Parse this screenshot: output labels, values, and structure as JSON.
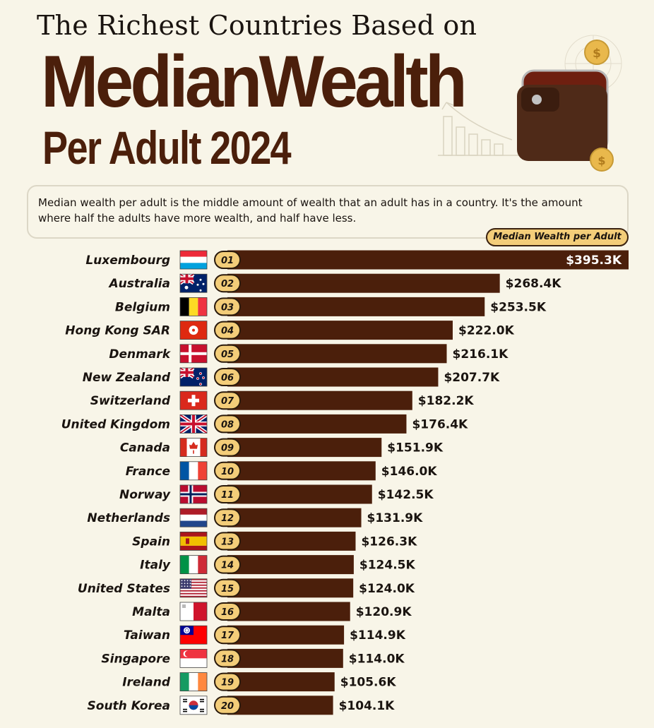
{
  "header": {
    "title_line1": "The Richest Countries Based on",
    "title_line2": "MedianWealth",
    "title_line3": "Per Adult 2024"
  },
  "description": "Median wealth per adult is the middle amount of wealth that an adult has in a country. It's the amount where half the adults have more wealth, and half have less.",
  "legend_label": "Median Wealth per Adult",
  "colors": {
    "bar": "#4b1f0b",
    "pill": "#f3cd79",
    "background": "#f8f5e8",
    "title": "#4b1f0b"
  },
  "chart_data": {
    "type": "bar",
    "orientation": "horizontal",
    "title": "The Richest Countries Based on MedianWealth Per Adult 2024",
    "series_name": "Median Wealth per Adult",
    "unit": "USD",
    "categories": [
      "Luxembourg",
      "Australia",
      "Belgium",
      "Hong Kong SAR",
      "Denmark",
      "New Zealand",
      "Switzerland",
      "United Kingdom",
      "Canada",
      "France",
      "Norway",
      "Netherlands",
      "Spain",
      "Italy",
      "United States",
      "Malta",
      "Taiwan",
      "Singapore",
      "Ireland",
      "South Korea"
    ],
    "ranks": [
      "01",
      "02",
      "03",
      "04",
      "05",
      "06",
      "07",
      "08",
      "09",
      "10",
      "11",
      "12",
      "13",
      "14",
      "15",
      "16",
      "17",
      "18",
      "19",
      "20"
    ],
    "values": [
      395.3,
      268.4,
      253.5,
      222.0,
      216.1,
      207.7,
      182.2,
      176.4,
      151.9,
      146.0,
      142.5,
      131.9,
      126.3,
      124.5,
      124.0,
      120.9,
      114.9,
      114.0,
      105.6,
      104.1
    ],
    "value_labels": [
      "$395.3K",
      "$268.4K",
      "$253.5K",
      "$222.0K",
      "$216.1K",
      "$207.7K",
      "$182.2K",
      "$176.4K",
      "$151.9K",
      "$146.0K",
      "$142.5K",
      "$131.9K",
      "$126.3K",
      "$124.5K",
      "$124.0K",
      "$120.9K",
      "$114.9K",
      "$114.0K",
      "$105.6K",
      "$104.1K"
    ],
    "flags": [
      "luxembourg-flag",
      "australia-flag",
      "belgium-flag",
      "hong-kong-flag",
      "denmark-flag",
      "new-zealand-flag",
      "switzerland-flag",
      "united-kingdom-flag",
      "canada-flag",
      "france-flag",
      "norway-flag",
      "netherlands-flag",
      "spain-flag",
      "italy-flag",
      "united-states-flag",
      "malta-flag",
      "taiwan-flag",
      "singapore-flag",
      "ireland-flag",
      "south-korea-flag"
    ],
    "grid": false,
    "legend": "top-right"
  }
}
